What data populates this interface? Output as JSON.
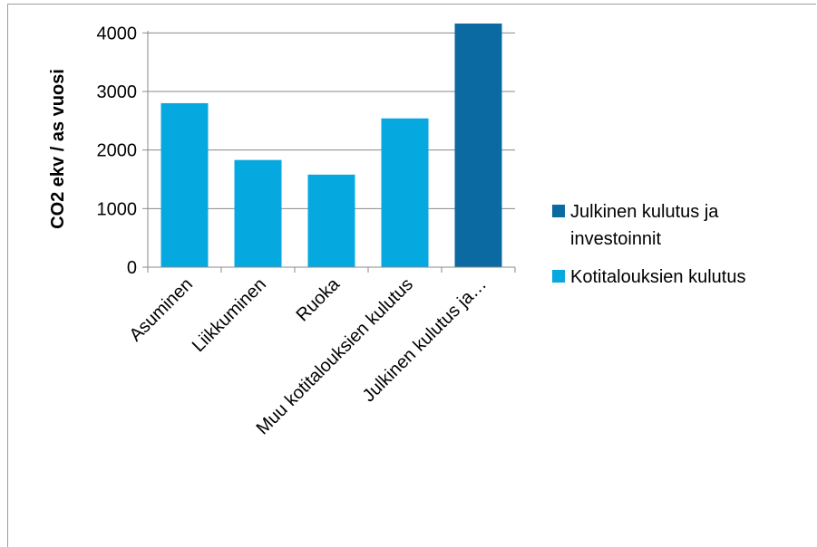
{
  "chart_data": {
    "type": "bar",
    "ylabel": "CO2 ekv / as vuosi",
    "xlabel": "",
    "ylim": [
      0,
      4500
    ],
    "yticks": [
      0,
      1000,
      2000,
      3000,
      4000
    ],
    "grid": true,
    "legend_position": "right",
    "categories": [
      "Asuminen",
      "Liikkuminen",
      "Ruoka",
      "Muu kotitalouksien kulutus",
      "Julkinen kulutus ja…"
    ],
    "values": [
      2800,
      1830,
      1580,
      2540,
      4160
    ],
    "bar_series": [
      "Kotitalouksien kulutus",
      "Kotitalouksien kulutus",
      "Kotitalouksien kulutus",
      "Kotitalouksien kulutus",
      "Julkinen kulutus ja investoinnit"
    ],
    "series": [
      {
        "name": "Julkinen kulutus ja investoinnit",
        "color": "#0a6aa1",
        "values": [
          null,
          null,
          null,
          null,
          4160
        ]
      },
      {
        "name": "Kotitalouksien kulutus",
        "color": "#06a8e0",
        "values": [
          2800,
          1830,
          1580,
          2540,
          null
        ]
      }
    ],
    "legend": [
      {
        "lines": [
          "Julkinen kulutus ja",
          "investoinnit"
        ],
        "color": "#0a6aa1"
      },
      {
        "lines": [
          "Kotitalouksien kulutus"
        ],
        "color": "#06a8e0"
      }
    ]
  }
}
